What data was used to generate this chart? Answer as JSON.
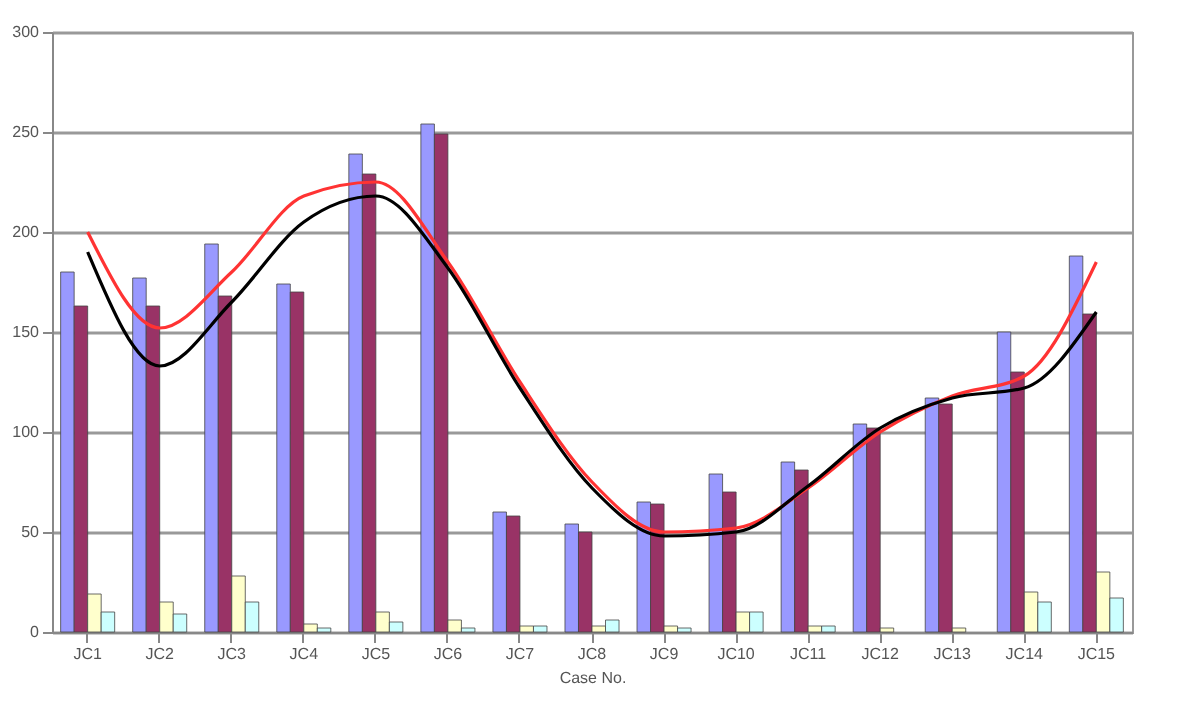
{
  "chart_data": {
    "type": "bar",
    "xlabel": "Case No.",
    "categories": [
      "JC1",
      "JC2",
      "JC3",
      "JC4",
      "JC5",
      "JC6",
      "JC7",
      "JC8",
      "JC9",
      "JC10",
      "JC11",
      "JC12",
      "JC13",
      "JC14",
      "JC15"
    ],
    "series": [
      {
        "color": "#9999ff",
        "values": [
          180,
          177,
          194,
          174,
          239,
          254,
          60,
          54,
          65,
          79,
          85,
          104,
          117,
          150,
          188
        ]
      },
      {
        "color": "#993366",
        "values": [
          163,
          163,
          168,
          170,
          229,
          249,
          58,
          50,
          64,
          70,
          81,
          102,
          114,
          130,
          159
        ]
      },
      {
        "color": "#ffffcc",
        "values": [
          19,
          15,
          28,
          4,
          10,
          6,
          3,
          3,
          3,
          10,
          3,
          2,
          2,
          20,
          30
        ]
      },
      {
        "color": "#ccffff",
        "values": [
          10,
          9,
          15,
          2,
          5,
          2,
          3,
          6,
          2,
          10,
          3,
          null,
          null,
          15,
          17
        ]
      },
      {
        "type": "line",
        "color": "#ff3333",
        "values": [
          200,
          152,
          180,
          218,
          225,
          185,
          125,
          75,
          50,
          52,
          72,
          100,
          118,
          128,
          185
        ]
      },
      {
        "type": "line",
        "color": "#000000",
        "values": [
          190,
          133,
          165,
          205,
          218,
          182,
          122,
          72,
          48,
          50,
          73,
          102,
          117,
          122,
          160
        ]
      }
    ],
    "ylim": [
      0,
      300
    ],
    "yticks": [
      0,
      50,
      100,
      150,
      200,
      250,
      300
    ],
    "grid": "y"
  }
}
